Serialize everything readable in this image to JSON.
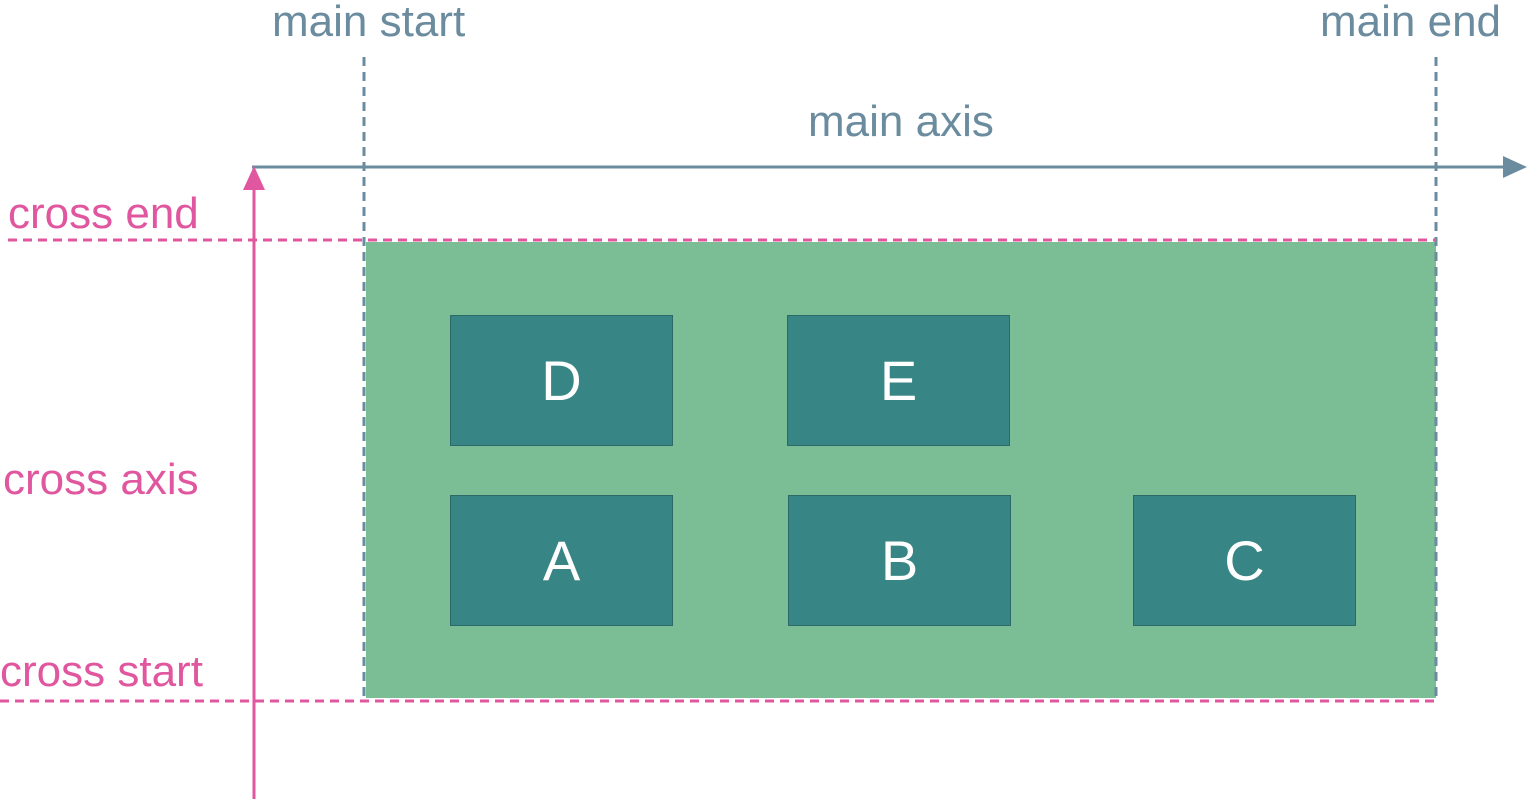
{
  "colors": {
    "main_axis": "#6b8b9f",
    "cross_axis": "#e0579f",
    "container": "#7bbe96",
    "item": "#388585",
    "item_text": "#ffffff"
  },
  "labels": {
    "main_start": "main start",
    "main_end": "main end",
    "main_axis": "main axis",
    "cross_end": "cross end",
    "cross_axis": "cross axis",
    "cross_start": "cross start"
  },
  "items": {
    "d": "D",
    "e": "E",
    "a": "A",
    "b": "B",
    "c": "C"
  }
}
